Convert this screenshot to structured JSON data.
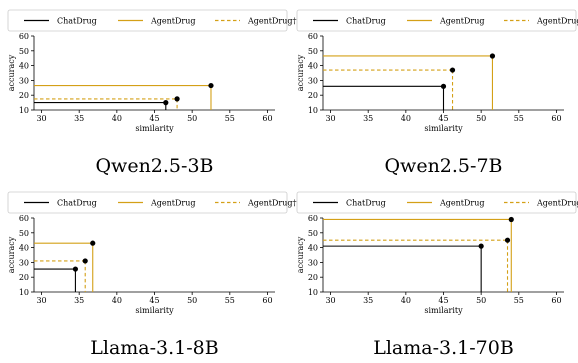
{
  "legend": [
    {
      "name": "ChatDrug",
      "style": "solid",
      "color": "#000000"
    },
    {
      "name": "AgentDrug",
      "style": "solid",
      "color": "#d4a017"
    },
    {
      "name": "AgentDrug†",
      "style": "dashed",
      "color": "#d4a017"
    }
  ],
  "chart_data": [
    {
      "type": "scatter",
      "title": "Qwen2.5-3B",
      "xlabel": "similarity",
      "ylabel": "accuracy",
      "xlim": [
        29,
        61
      ],
      "ylim": [
        10,
        60
      ],
      "xticks": [
        30,
        35,
        40,
        45,
        50,
        55,
        60
      ],
      "yticks": [
        10,
        20,
        30,
        40,
        50,
        60
      ],
      "grid": false,
      "series": [
        {
          "name": "ChatDrug",
          "x": 46.5,
          "y": 15
        },
        {
          "name": "AgentDrug",
          "x": 52.5,
          "y": 26.5
        },
        {
          "name": "AgentDrug†",
          "x": 48,
          "y": 17.5
        }
      ]
    },
    {
      "type": "scatter",
      "title": "Qwen2.5-7B",
      "xlabel": "similarity",
      "ylabel": "accuracy",
      "xlim": [
        29,
        61
      ],
      "ylim": [
        10,
        60
      ],
      "xticks": [
        30,
        35,
        40,
        45,
        50,
        55,
        60
      ],
      "yticks": [
        10,
        20,
        30,
        40,
        50,
        60
      ],
      "grid": false,
      "series": [
        {
          "name": "ChatDrug",
          "x": 45,
          "y": 26
        },
        {
          "name": "AgentDrug",
          "x": 51.5,
          "y": 46.5
        },
        {
          "name": "AgentDrug†",
          "x": 46.2,
          "y": 37
        }
      ]
    },
    {
      "type": "scatter",
      "title": "Llama-3.1-8B",
      "xlabel": "similarity",
      "ylabel": "accuracy",
      "xlim": [
        29,
        61
      ],
      "ylim": [
        10,
        60
      ],
      "xticks": [
        30,
        35,
        40,
        45,
        50,
        55,
        60
      ],
      "yticks": [
        10,
        20,
        30,
        40,
        50,
        60
      ],
      "grid": false,
      "series": [
        {
          "name": "ChatDrug",
          "x": 34.5,
          "y": 25.5
        },
        {
          "name": "AgentDrug",
          "x": 36.8,
          "y": 43
        },
        {
          "name": "AgentDrug†",
          "x": 35.8,
          "y": 31
        }
      ]
    },
    {
      "type": "scatter",
      "title": "Llama-3.1-70B",
      "xlabel": "similarity",
      "ylabel": "accuracy",
      "xlim": [
        29,
        61
      ],
      "ylim": [
        10,
        60
      ],
      "xticks": [
        30,
        35,
        40,
        45,
        50,
        55,
        60
      ],
      "yticks": [
        10,
        20,
        30,
        40,
        50,
        60
      ],
      "grid": false,
      "series": [
        {
          "name": "ChatDrug",
          "x": 50,
          "y": 41
        },
        {
          "name": "AgentDrug",
          "x": 54,
          "y": 59
        },
        {
          "name": "AgentDrug†",
          "x": 53.5,
          "y": 45
        }
      ]
    }
  ]
}
